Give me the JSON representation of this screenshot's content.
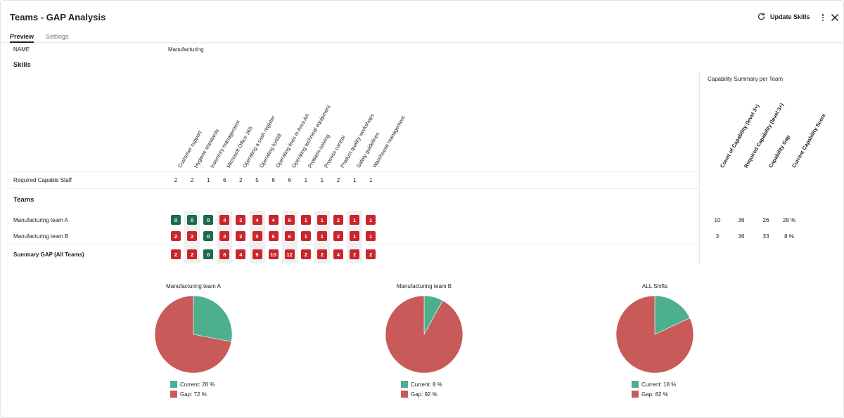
{
  "header": {
    "title": "Teams - GAP Analysis",
    "update_label": "Update Skills"
  },
  "tabs": [
    {
      "label": "Preview",
      "active": true
    },
    {
      "label": "Settings",
      "active": false
    }
  ],
  "name_field": {
    "label": "NAME",
    "value": "Manufacturing"
  },
  "skills_heading": "Skills",
  "capability_title": "Capability Summary per Team",
  "skills": [
    "Customer support",
    "Hygiene standards",
    "Inventory management",
    "Microsoft Office 365",
    "Operating a cash register",
    "Operating forklift",
    "Operating lines in Area AA",
    "Operating technical equipment",
    "Problem-solving",
    "Process control",
    "Product quality workshops",
    "Safety guidelines",
    "Warehouse management"
  ],
  "capability_columns": [
    "Count of Capability (level 3+)",
    "Required Capability (level 3+)",
    "Capability Gap",
    "Current Capability Score"
  ],
  "required_staff": {
    "label": "Required Capable Staff",
    "values": [
      "2",
      "2",
      "1",
      "6",
      "2",
      "5",
      "6",
      "6",
      "1",
      "1",
      "2",
      "1",
      "1"
    ]
  },
  "teams_heading": "Teams",
  "rows": [
    {
      "label": "Manufacturing team A",
      "values": [
        "0",
        "0",
        "0",
        "4",
        "2",
        "4",
        "4",
        "6",
        "1",
        "1",
        "2",
        "1",
        "1"
      ],
      "status": [
        "green",
        "green",
        "green",
        "red",
        "red",
        "red",
        "red",
        "red",
        "red",
        "red",
        "red",
        "red",
        "red"
      ],
      "capability": [
        "10",
        "36",
        "26",
        "28 %"
      ]
    },
    {
      "label": "Manufacturing team B",
      "values": [
        "2",
        "2",
        "0",
        "4",
        "2",
        "5",
        "6",
        "6",
        "1",
        "1",
        "2",
        "1",
        "1"
      ],
      "status": [
        "red",
        "red",
        "green",
        "red",
        "red",
        "red",
        "red",
        "red",
        "red",
        "red",
        "red",
        "red",
        "red"
      ],
      "capability": [
        "3",
        "36",
        "33",
        "8 %"
      ]
    },
    {
      "label": "Summary GAP (All Teams)",
      "values": [
        "2",
        "2",
        "0",
        "8",
        "4",
        "9",
        "10",
        "12",
        "2",
        "2",
        "4",
        "2",
        "2"
      ],
      "status": [
        "red",
        "red",
        "green",
        "red",
        "red",
        "red",
        "red",
        "red",
        "red",
        "red",
        "red",
        "red",
        "red"
      ],
      "capability": []
    }
  ],
  "colors": {
    "badge_green": "#1c6b4a",
    "badge_red": "#c8262b",
    "pie_current": "#4caf8e",
    "pie_gap": "#c85a5a"
  },
  "chart_data": [
    {
      "type": "pie",
      "title": "Manufacturing team A",
      "categories": [
        "Current",
        "Gap"
      ],
      "values": [
        28,
        72
      ],
      "legend": [
        "Current: 28 %",
        "Gap: 72 %"
      ]
    },
    {
      "type": "pie",
      "title": "Manufacturing team B",
      "categories": [
        "Current",
        "Gap"
      ],
      "values": [
        8,
        92
      ],
      "legend": [
        "Current: 8 %",
        "Gap: 92 %"
      ]
    },
    {
      "type": "pie",
      "title": "ALL Shifts",
      "categories": [
        "Current",
        "Gap"
      ],
      "values": [
        18,
        82
      ],
      "legend": [
        "Current: 18 %",
        "Gap: 82 %"
      ]
    }
  ]
}
